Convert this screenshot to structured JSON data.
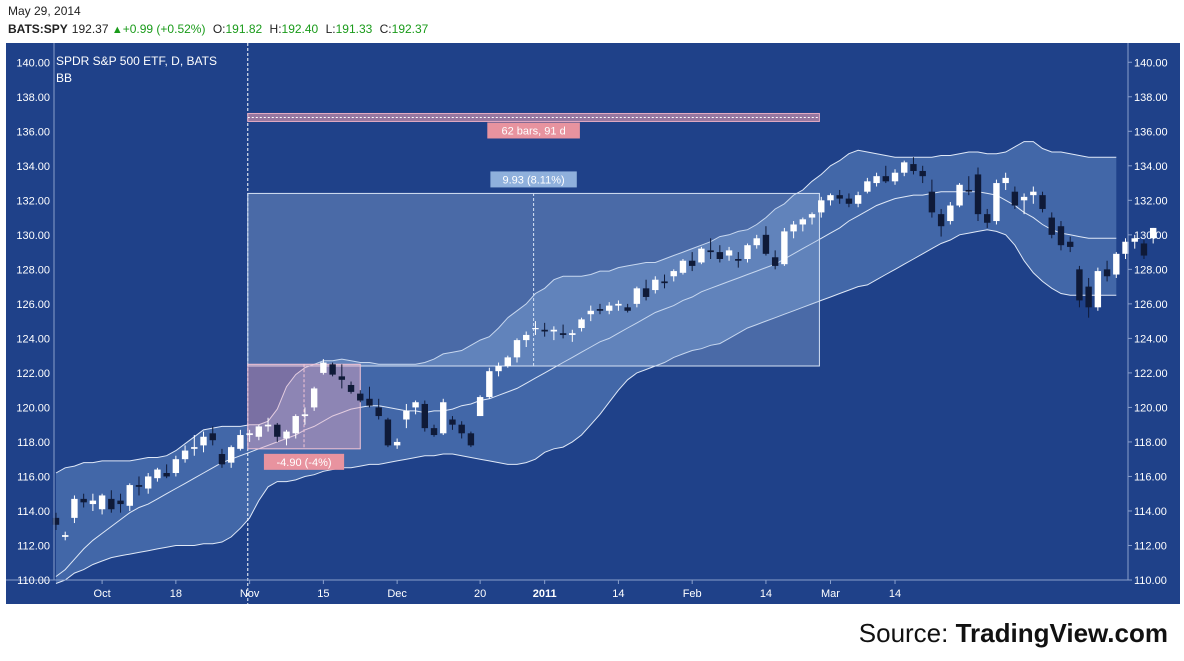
{
  "header": {
    "date": "May 29, 2014",
    "symbol": "BATS:SPY",
    "last": "192.37",
    "change": "+0.99 (+0.52%)",
    "open_label": "O:",
    "open": "191.82",
    "high_label": "H:",
    "high": "192.40",
    "low_label": "L:",
    "low": "191.33",
    "close_label": "C:",
    "close": "192.37"
  },
  "legend": {
    "title": "SPDR S&P 500 ETF, D, BATS",
    "indicator": "BB"
  },
  "colors": {
    "background": "#1f4189",
    "band_fill": "#5a80bd",
    "candle_up": "#ffffff",
    "candle_down": "#0f1a38",
    "up_text": "#1a9b1a",
    "range_box": "#9bb6e0",
    "drawdown_box": "#e8aac4",
    "measure_label_red": "#e8939f",
    "measure_label_blue": "#8fb0dc"
  },
  "annotations": {
    "bars_label": "62 bars, 91 d",
    "gain_label": "9.93 (8.11%)",
    "loss_label": "-4.90 (-4%)"
  },
  "chart_data": {
    "type": "candlestick",
    "ylim": [
      110,
      141
    ],
    "y_ticks": [
      "110.00",
      "112.00",
      "114.00",
      "116.00",
      "118.00",
      "120.00",
      "122.00",
      "124.00",
      "126.00",
      "128.00",
      "130.00",
      "132.00",
      "134.00",
      "136.00",
      "138.00",
      "140.00"
    ],
    "x_ticks": [
      {
        "label": "Oct",
        "i": 5,
        "bold": false
      },
      {
        "label": "18",
        "i": 13,
        "bold": false
      },
      {
        "label": "Nov",
        "i": 21,
        "bold": false
      },
      {
        "label": "15",
        "i": 29,
        "bold": false
      },
      {
        "label": "Dec",
        "i": 37,
        "bold": false
      },
      {
        "label": "20",
        "i": 46,
        "bold": false
      },
      {
        "label": "2011",
        "i": 53,
        "bold": true
      },
      {
        "label": "14",
        "i": 61,
        "bold": false
      },
      {
        "label": "Feb",
        "i": 69,
        "bold": false
      },
      {
        "label": "14",
        "i": 77,
        "bold": false
      },
      {
        "label": "Mar",
        "i": 84,
        "bold": false
      },
      {
        "label": "14",
        "i": 91,
        "bold": false
      }
    ],
    "candles": [
      [
        113.6,
        113.9,
        112.9,
        113.2
      ],
      [
        112.5,
        112.8,
        112.3,
        112.6
      ],
      [
        113.6,
        114.9,
        113.3,
        114.7
      ],
      [
        114.7,
        115.0,
        114.2,
        114.5
      ],
      [
        114.4,
        115.0,
        114.0,
        114.6
      ],
      [
        114.1,
        115.0,
        113.8,
        114.9
      ],
      [
        114.7,
        115.2,
        113.9,
        114.1
      ],
      [
        114.6,
        115.0,
        113.9,
        114.4
      ],
      [
        114.3,
        115.6,
        114.0,
        115.5
      ],
      [
        115.5,
        116.0,
        114.9,
        115.4
      ],
      [
        115.3,
        116.2,
        115.0,
        116.0
      ],
      [
        115.9,
        116.5,
        115.7,
        116.4
      ],
      [
        116.2,
        116.7,
        115.9,
        116.0
      ],
      [
        116.2,
        117.2,
        116.0,
        117.0
      ],
      [
        117.0,
        117.8,
        116.8,
        117.5
      ],
      [
        117.6,
        118.4,
        117.2,
        117.7
      ],
      [
        117.8,
        118.6,
        117.4,
        118.3
      ],
      [
        118.5,
        118.9,
        117.8,
        118.1
      ],
      [
        117.3,
        117.6,
        116.5,
        116.7
      ],
      [
        116.8,
        117.8,
        116.5,
        117.7
      ],
      [
        117.6,
        118.7,
        117.5,
        118.4
      ],
      [
        118.4,
        118.7,
        118.0,
        118.5
      ],
      [
        118.3,
        119.0,
        118.1,
        118.9
      ],
      [
        118.9,
        119.4,
        118.6,
        119.0
      ],
      [
        119.0,
        119.1,
        118.0,
        118.3
      ],
      [
        118.2,
        118.7,
        117.8,
        118.6
      ],
      [
        118.5,
        119.6,
        118.2,
        119.5
      ],
      [
        119.5,
        120.0,
        119.0,
        119.6
      ],
      [
        120.0,
        121.2,
        119.8,
        121.1
      ],
      [
        122.0,
        122.8,
        121.9,
        122.6
      ],
      [
        122.5,
        122.6,
        121.8,
        121.9
      ],
      [
        121.8,
        122.5,
        121.1,
        121.6
      ],
      [
        121.3,
        121.5,
        120.8,
        120.9
      ],
      [
        120.8,
        121.0,
        120.3,
        120.4
      ],
      [
        120.5,
        121.2,
        120.0,
        120.1
      ],
      [
        120.0,
        120.5,
        119.3,
        119.5
      ],
      [
        119.3,
        119.4,
        117.7,
        117.8
      ],
      [
        117.8,
        118.2,
        117.6,
        118.0
      ],
      [
        119.3,
        120.2,
        118.8,
        119.8
      ],
      [
        120.0,
        120.4,
        119.6,
        120.3
      ],
      [
        120.2,
        120.4,
        118.6,
        118.8
      ],
      [
        118.8,
        119.0,
        118.3,
        118.4
      ],
      [
        118.5,
        120.5,
        118.4,
        120.3
      ],
      [
        119.3,
        119.5,
        118.7,
        119.0
      ],
      [
        119.0,
        119.2,
        118.2,
        118.5
      ],
      [
        118.5,
        118.6,
        117.7,
        117.8
      ],
      [
        119.5,
        120.7,
        119.5,
        120.6
      ],
      [
        120.6,
        122.3,
        120.5,
        122.1
      ],
      [
        122.1,
        122.6,
        121.8,
        122.4
      ],
      [
        122.4,
        123.0,
        122.3,
        122.9
      ],
      [
        122.9,
        124.0,
        122.6,
        123.9
      ],
      [
        123.9,
        124.4,
        123.5,
        124.2
      ],
      [
        124.6,
        125.0,
        124.2,
        124.6
      ],
      [
        124.5,
        124.9,
        124.1,
        124.4
      ],
      [
        124.4,
        124.7,
        123.9,
        124.5
      ],
      [
        124.3,
        124.8,
        124.0,
        124.2
      ],
      [
        124.2,
        124.5,
        123.8,
        124.3
      ],
      [
        124.6,
        125.2,
        124.4,
        125.1
      ],
      [
        125.4,
        125.9,
        125.0,
        125.6
      ],
      [
        125.7,
        126.0,
        125.4,
        125.6
      ],
      [
        125.6,
        126.1,
        125.4,
        125.9
      ],
      [
        125.9,
        126.2,
        125.6,
        126.0
      ],
      [
        125.8,
        126.0,
        125.5,
        125.6
      ],
      [
        126.0,
        127.0,
        125.8,
        126.9
      ],
      [
        126.9,
        127.4,
        126.2,
        126.4
      ],
      [
        126.8,
        127.6,
        126.6,
        127.4
      ],
      [
        127.3,
        127.7,
        126.9,
        127.2
      ],
      [
        127.6,
        128.0,
        127.3,
        127.9
      ],
      [
        127.8,
        128.6,
        127.7,
        128.5
      ],
      [
        128.5,
        129.0,
        127.9,
        128.2
      ],
      [
        128.4,
        129.3,
        128.3,
        129.2
      ],
      [
        129.1,
        129.8,
        128.6,
        129.0
      ],
      [
        129.0,
        129.4,
        128.4,
        128.6
      ],
      [
        128.8,
        129.3,
        128.5,
        129.1
      ],
      [
        128.6,
        129.0,
        128.1,
        128.5
      ],
      [
        128.6,
        129.5,
        128.4,
        129.4
      ],
      [
        129.4,
        130.0,
        129.2,
        129.8
      ],
      [
        130.0,
        130.5,
        128.8,
        128.9
      ],
      [
        128.7,
        129.1,
        128.0,
        128.2
      ],
      [
        128.3,
        130.4,
        128.2,
        130.2
      ],
      [
        130.2,
        130.8,
        129.8,
        130.6
      ],
      [
        130.6,
        131.0,
        130.2,
        130.9
      ],
      [
        131.0,
        131.3,
        130.6,
        131.2
      ],
      [
        131.3,
        132.2,
        131.0,
        132.0
      ],
      [
        132.0,
        132.4,
        131.7,
        132.3
      ],
      [
        132.3,
        132.6,
        131.8,
        132.1
      ],
      [
        132.1,
        132.4,
        131.6,
        131.8
      ],
      [
        131.8,
        132.5,
        131.6,
        132.3
      ],
      [
        132.5,
        133.3,
        132.4,
        133.1
      ],
      [
        133.0,
        133.6,
        132.8,
        133.4
      ],
      [
        133.4,
        134.0,
        133.0,
        133.1
      ],
      [
        133.1,
        133.8,
        132.9,
        133.6
      ],
      [
        133.6,
        134.3,
        133.4,
        134.2
      ],
      [
        134.1,
        134.5,
        133.5,
        133.7
      ],
      [
        133.7,
        134.0,
        133.0,
        133.4
      ],
      [
        132.5,
        133.2,
        131.0,
        131.3
      ],
      [
        131.2,
        131.5,
        129.9,
        130.5
      ],
      [
        130.8,
        131.9,
        130.6,
        131.7
      ],
      [
        131.7,
        133.0,
        131.6,
        132.9
      ],
      [
        132.6,
        133.4,
        132.3,
        132.5
      ],
      [
        133.5,
        133.9,
        130.8,
        131.2
      ],
      [
        131.2,
        131.5,
        130.4,
        130.7
      ],
      [
        130.8,
        133.2,
        130.6,
        133.0
      ],
      [
        133.0,
        133.6,
        132.6,
        133.3
      ],
      [
        132.5,
        132.8,
        131.5,
        131.7
      ],
      [
        132.0,
        132.4,
        131.2,
        132.2
      ],
      [
        132.3,
        132.8,
        131.8,
        132.5
      ],
      [
        132.3,
        132.5,
        131.3,
        131.5
      ],
      [
        131.0,
        131.3,
        129.8,
        130.0
      ],
      [
        130.5,
        130.8,
        129.1,
        129.4
      ],
      [
        129.6,
        129.9,
        129.0,
        129.3
      ],
      [
        128.0,
        128.2,
        125.8,
        126.2
      ],
      [
        127.0,
        127.5,
        125.2,
        125.8
      ],
      [
        125.8,
        128.1,
        125.6,
        127.9
      ],
      [
        128.0,
        128.5,
        127.3,
        127.6
      ],
      [
        127.7,
        129.0,
        127.5,
        128.9
      ],
      [
        128.9,
        129.8,
        128.6,
        129.6
      ],
      [
        129.6,
        130.0,
        129.2,
        129.8
      ],
      [
        129.5,
        129.7,
        128.6,
        128.8
      ],
      [
        129.8,
        130.4,
        129.5,
        130.4
      ]
    ],
    "bb_upper": [
      116.2,
      116.5,
      116.6,
      116.8,
      116.8,
      116.9,
      116.9,
      116.9,
      116.9,
      117.0,
      117.1,
      117.1,
      117.2,
      117.5,
      117.9,
      118.3,
      118.7,
      118.8,
      118.9,
      118.9,
      118.9,
      119.0,
      119.0,
      119.2,
      119.9,
      121.2,
      121.9,
      122.3,
      122.5,
      122.7,
      122.7,
      122.8,
      122.7,
      122.6,
      122.6,
      122.5,
      122.5,
      122.5,
      122.5,
      122.5,
      122.6,
      122.8,
      123.1,
      123.2,
      123.3,
      123.6,
      123.9,
      124.1,
      124.6,
      125.2,
      125.6,
      126.0,
      126.6,
      126.9,
      127.4,
      127.6,
      127.6,
      127.6,
      127.7,
      127.9,
      127.9,
      128.1,
      128.2,
      128.3,
      128.4,
      128.4,
      128.6,
      128.8,
      129.0,
      129.2,
      129.4,
      129.6,
      129.9,
      130.0,
      130.2,
      130.3,
      130.6,
      131.0,
      131.5,
      131.8,
      132.3,
      132.6,
      133.1,
      133.5,
      134.0,
      134.3,
      134.7,
      134.9,
      134.8,
      134.7,
      134.6,
      134.5,
      134.5,
      134.5,
      134.5,
      134.5,
      134.6,
      134.6,
      134.7,
      134.8,
      134.8,
      134.7,
      134.7,
      134.8,
      135.1,
      135.4,
      135.4,
      135.0,
      134.8,
      134.8,
      134.7,
      134.6,
      134.5,
      134.5,
      134.5,
      134.5
    ],
    "bb_middle": [
      110.2,
      110.6,
      111.2,
      111.8,
      112.3,
      112.7,
      113.1,
      113.5,
      113.9,
      114.2,
      114.4,
      114.7,
      115.0,
      115.3,
      115.6,
      115.9,
      116.2,
      116.5,
      116.8,
      117.0,
      117.2,
      117.4,
      117.6,
      117.8,
      118.0,
      118.2,
      118.4,
      118.7,
      118.9,
      119.2,
      119.5,
      119.7,
      119.9,
      120.0,
      120.1,
      120.1,
      120.0,
      119.9,
      119.8,
      119.8,
      119.7,
      119.8,
      119.8,
      119.9,
      120.1,
      120.2,
      120.4,
      120.5,
      120.7,
      120.9,
      121.1,
      121.4,
      121.7,
      122.0,
      122.3,
      122.6,
      122.9,
      123.2,
      123.5,
      123.8,
      124.0,
      124.3,
      124.6,
      124.9,
      125.2,
      125.5,
      125.7,
      125.9,
      126.2,
      126.4,
      126.7,
      126.9,
      127.1,
      127.3,
      127.5,
      127.7,
      127.9,
      128.1,
      128.3,
      128.6,
      128.9,
      129.2,
      129.5,
      129.8,
      130.1,
      130.4,
      130.8,
      131.1,
      131.4,
      131.7,
      131.9,
      132.1,
      132.2,
      132.3,
      132.3,
      132.4,
      132.5,
      132.5,
      132.5,
      132.5,
      132.5,
      132.4,
      132.3,
      132.0,
      131.7,
      131.3,
      131.0,
      130.6,
      130.3,
      130.1,
      130.0,
      129.9,
      129.8,
      129.8,
      129.8,
      129.8
    ],
    "bb_lower": [
      109.8,
      110.0,
      110.4,
      110.6,
      110.9,
      111.1,
      111.3,
      111.4,
      111.5,
      111.6,
      111.7,
      111.8,
      111.9,
      112.0,
      112.0,
      112.0,
      112.1,
      112.1,
      112.2,
      112.5,
      113.0,
      113.6,
      114.6,
      115.4,
      115.7,
      115.7,
      115.8,
      116.0,
      116.1,
      116.3,
      116.4,
      116.5,
      116.5,
      116.6,
      116.7,
      116.7,
      116.8,
      116.9,
      117.0,
      117.1,
      117.2,
      117.2,
      117.3,
      117.3,
      117.2,
      117.1,
      117.0,
      116.9,
      116.8,
      116.7,
      116.7,
      116.8,
      117.0,
      117.4,
      117.6,
      117.7,
      118.0,
      118.4,
      119.0,
      119.6,
      120.3,
      121.0,
      121.6,
      122.0,
      122.2,
      122.4,
      122.6,
      122.9,
      123.1,
      123.3,
      123.4,
      123.6,
      123.7,
      124.0,
      124.3,
      124.6,
      124.8,
      125.0,
      125.2,
      125.4,
      125.6,
      125.8,
      126.0,
      126.2,
      126.4,
      126.6,
      126.8,
      127.0,
      127.1,
      127.4,
      127.7,
      128.0,
      128.3,
      128.6,
      128.9,
      129.2,
      129.5,
      129.7,
      130.0,
      130.1,
      130.2,
      130.3,
      130.2,
      130.0,
      129.4,
      128.5,
      127.8,
      127.3,
      126.9,
      126.6,
      126.5,
      126.5,
      126.5,
      126.5,
      126.5,
      126.5
    ],
    "markers": {
      "vline_i": 20.8,
      "range_start_i": 20.8,
      "range_end_i": 82.8
    },
    "range_box": {
      "y_top": 132.4,
      "y_bottom": 122.4
    },
    "drawdown_box": {
      "i_end": 33.0,
      "y_top": 122.5,
      "y_bottom": 117.6
    },
    "bars_bar_y": 136.8
  }
}
